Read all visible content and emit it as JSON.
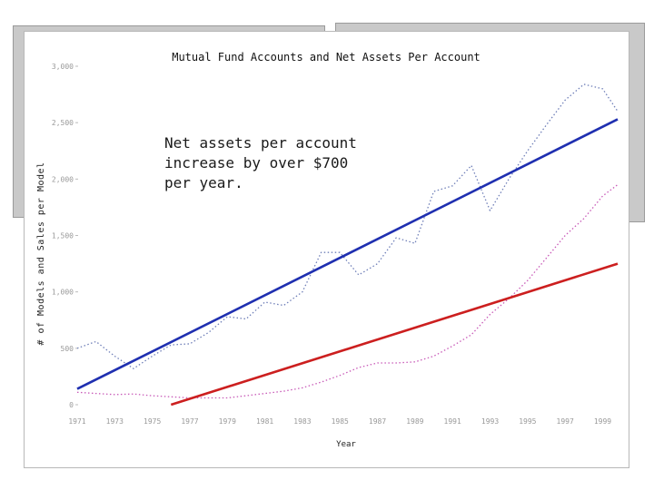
{
  "chart_data": {
    "type": "line",
    "title": "Mutual Fund Accounts and Net Assets Per Account",
    "xlabel": "Year",
    "ylabel": "# of Models and Sales per Model",
    "x_ticks": [
      "1971",
      "1973",
      "1975",
      "1977",
      "1979",
      "1981",
      "1983",
      "1985",
      "1987",
      "1989",
      "1991",
      "1993",
      "1995",
      "1997",
      "1999"
    ],
    "y_ticks": [
      "0",
      "500",
      "1,000",
      "1,500",
      "2,000",
      "2,500",
      "3,000"
    ],
    "xlim": [
      1971,
      1999.8
    ],
    "ylim": [
      0,
      3000
    ],
    "grid": false,
    "legend": "none",
    "series": [
      {
        "color": "#6f7fb8",
        "style": "dotted",
        "x": [
          1971,
          1972,
          1973,
          1974,
          1975,
          1976,
          1977,
          1978,
          1979,
          1980,
          1981,
          1982,
          1983,
          1984,
          1985,
          1986,
          1987,
          1988,
          1989,
          1990,
          1991,
          1992,
          1993,
          1994,
          1995,
          1996,
          1997,
          1998,
          1999,
          1999.8
        ],
        "values": [
          500,
          560,
          430,
          320,
          430,
          530,
          540,
          640,
          780,
          760,
          910,
          880,
          1000,
          1350,
          1350,
          1150,
          1250,
          1480,
          1430,
          1890,
          1940,
          2120,
          1720,
          2000,
          2250,
          2480,
          2700,
          2840,
          2800,
          2600
        ]
      },
      {
        "color": "#c85ab8",
        "style": "dotted",
        "x": [
          1971,
          1972,
          1973,
          1974,
          1975,
          1976,
          1977,
          1978,
          1979,
          1980,
          1981,
          1982,
          1983,
          1984,
          1985,
          1986,
          1987,
          1988,
          1989,
          1990,
          1991,
          1992,
          1993,
          1994,
          1995,
          1996,
          1997,
          1998,
          1999,
          1999.8
        ],
        "values": [
          110,
          100,
          90,
          95,
          80,
          70,
          60,
          60,
          60,
          80,
          100,
          120,
          150,
          200,
          260,
          330,
          370,
          370,
          380,
          430,
          520,
          620,
          800,
          940,
          1100,
          1300,
          1500,
          1650,
          1850,
          1950
        ]
      },
      {
        "color": "#1f2fb0",
        "style": "solid",
        "x": [
          1971,
          1999.8
        ],
        "values": [
          140,
          2530
        ]
      },
      {
        "color": "#cc1f1f",
        "style": "solid",
        "x": [
          1976,
          1999.8
        ],
        "values": [
          0,
          1250
        ]
      }
    ],
    "annotations": [
      {
        "text": "Net assets per account\nincrease by over $700\nper year."
      }
    ]
  },
  "colors": {
    "panel_background": "#ffffff",
    "back_card": "#c9c9c9",
    "trend_blue": "#1f2fb0",
    "trend_red": "#cc1f1f"
  }
}
